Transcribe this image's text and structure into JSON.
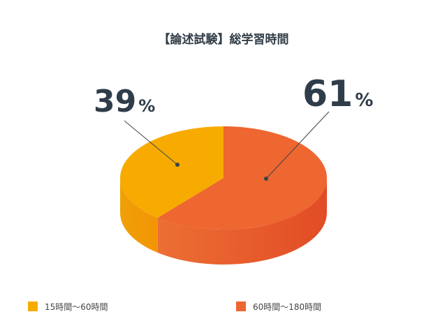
{
  "chart_data": {
    "type": "pie",
    "title": "【論述試験】総学習時間",
    "categories": [
      "15時間〜60時間",
      "60時間〜180時間"
    ],
    "values": [
      39,
      61
    ],
    "labels": [
      "39",
      "61"
    ],
    "unit": "%",
    "colors": [
      "#f7ab00",
      "#ee6630"
    ],
    "side_colors": [
      "#ef9a06",
      "#e4522a"
    ],
    "legend_position": "bottom",
    "style": "3d"
  }
}
